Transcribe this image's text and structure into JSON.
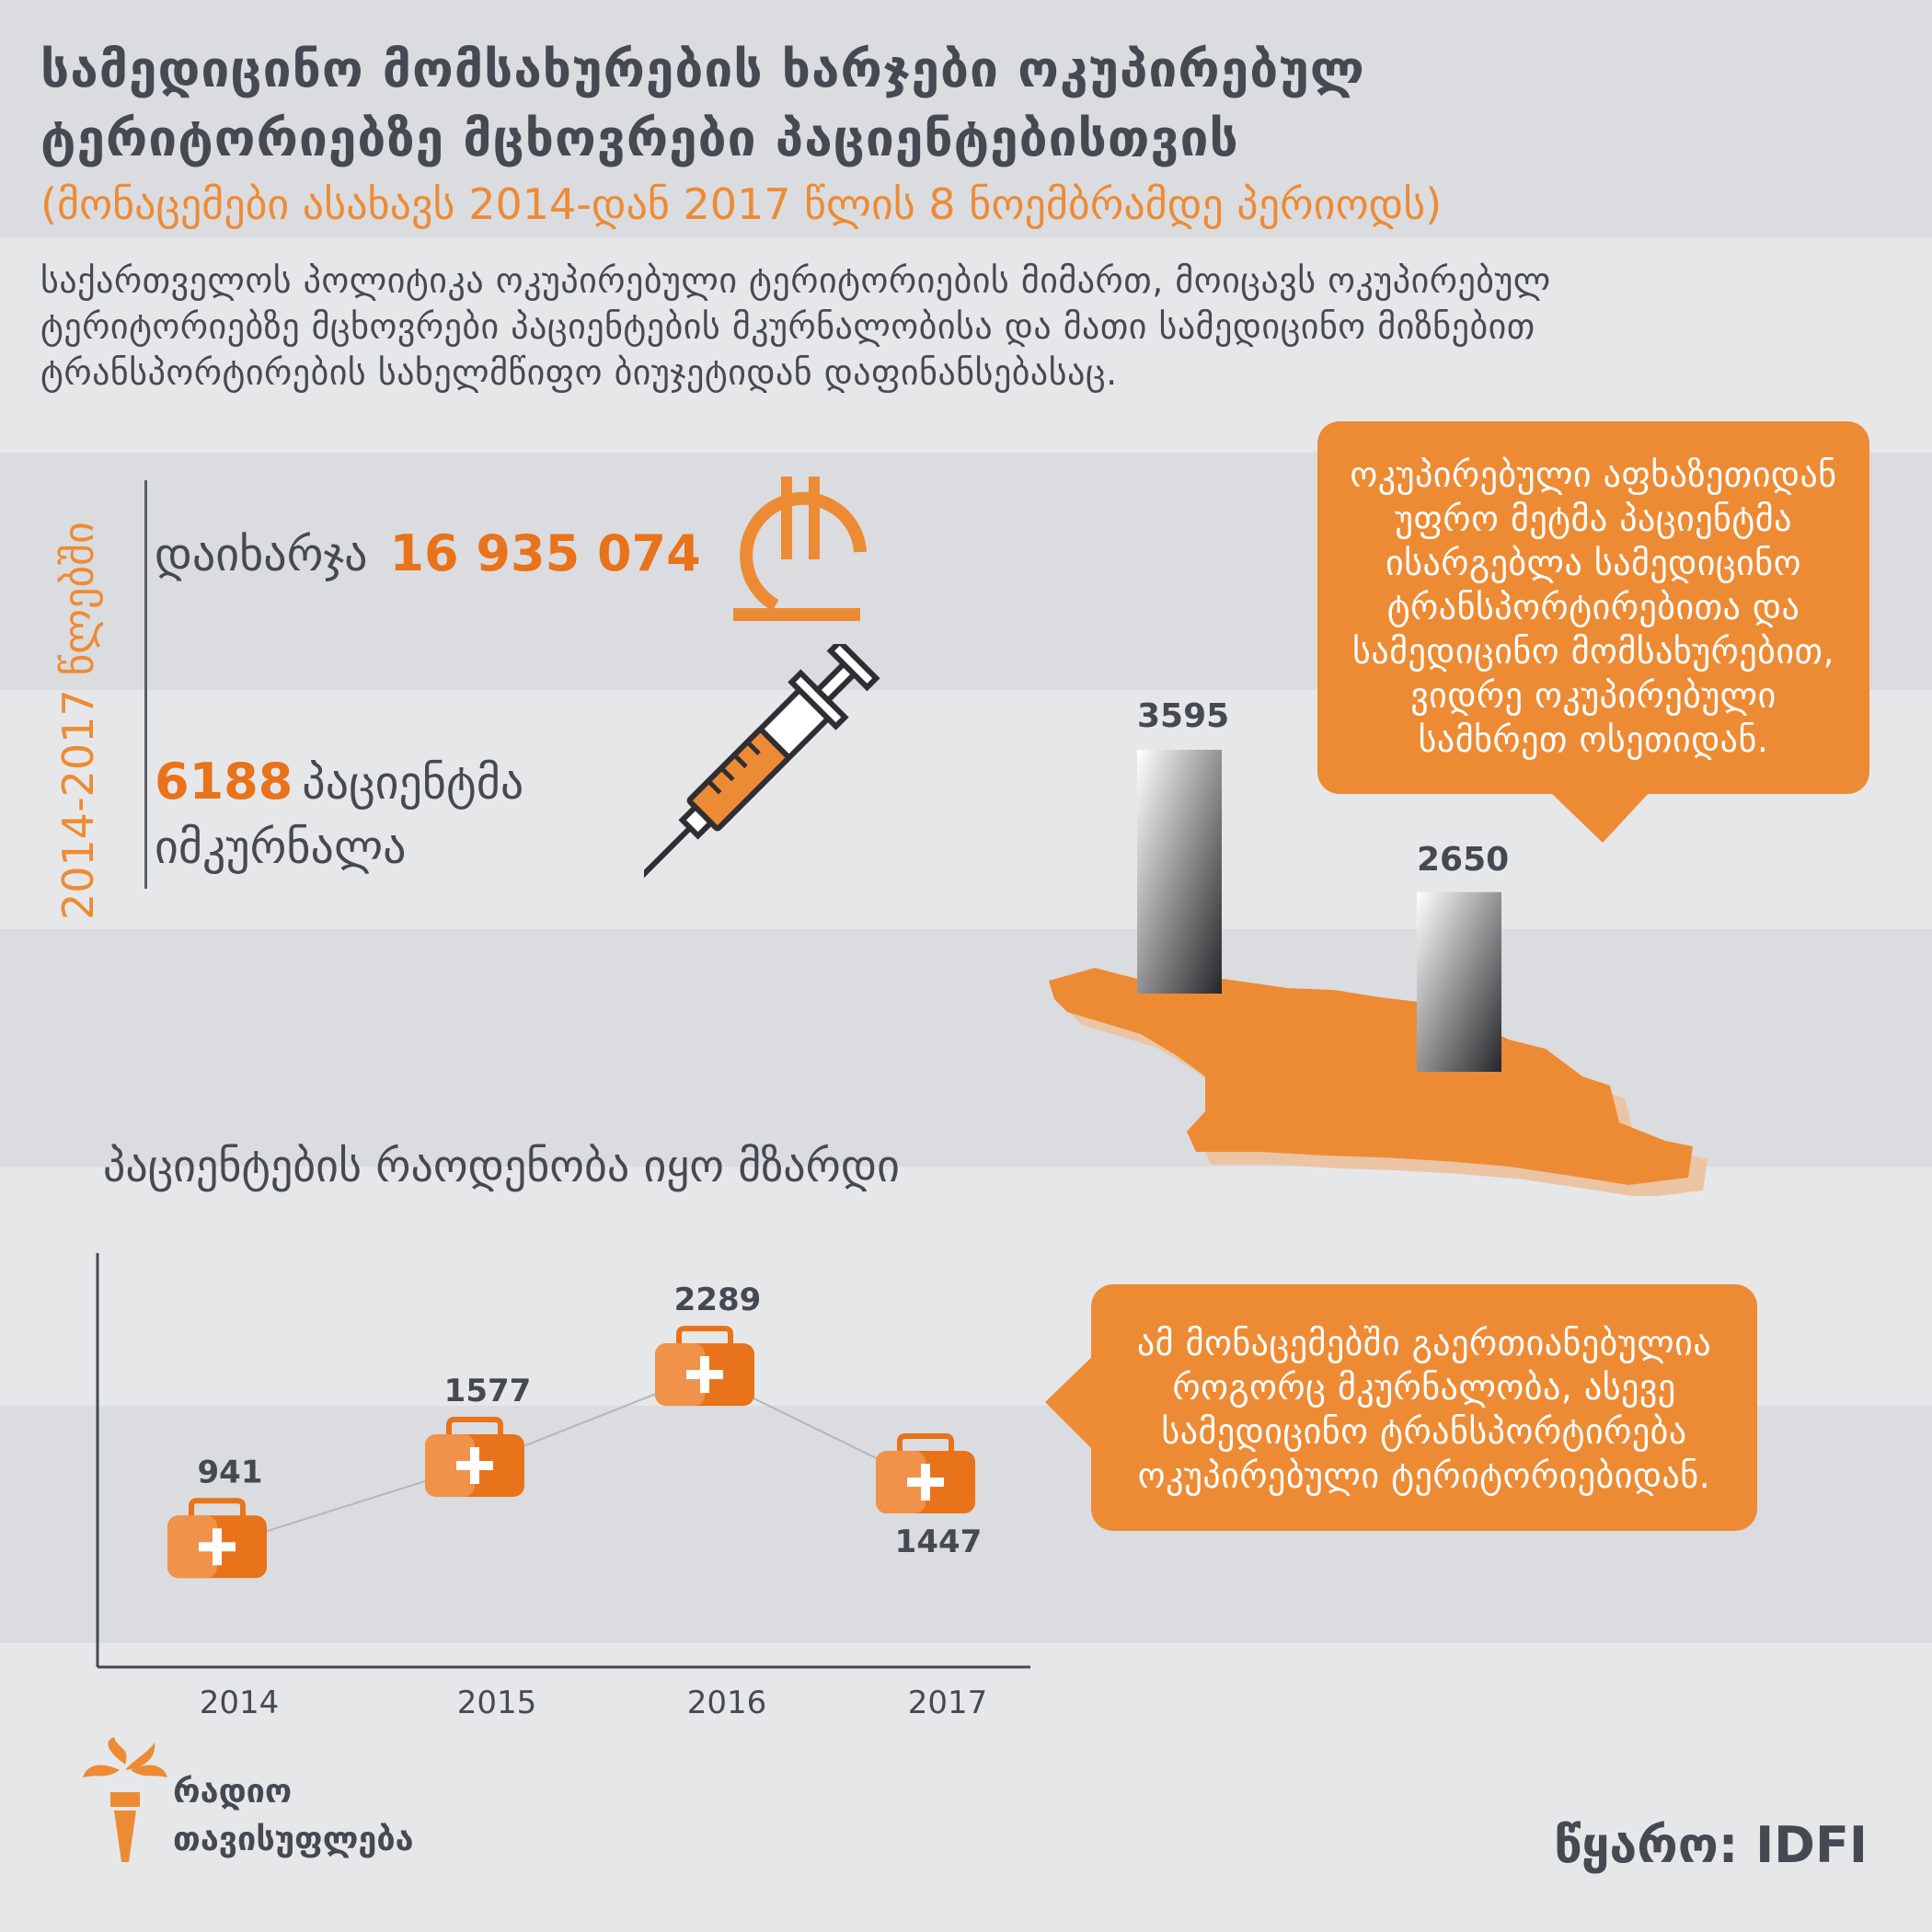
{
  "header": {
    "title_line1": "სამედიცინო მომსახურების ხარჯები ოკუპირებულ",
    "title_line2": "ტერიტორიებზე მცხოვრები პაციენტებისთვის",
    "subtitle": "(მონაცემები ასახავს 2014-დან 2017 წლის 8 ნოემბრამდე პერიოდს)"
  },
  "intro": {
    "line1": "საქართველოს პოლიტიკა ოკუპირებული ტერიტორიების მიმართ, მოიცავს ოკუპირებულ",
    "line2": "ტერიტორიებზე მცხოვრები პაციენტების მკურნალობისა და მათი სამედიცინო მიზნებით",
    "line3": "ტრანსპორტირების სახელმწიფო ბიუჯეტიდან დაფინანსებასაც."
  },
  "summary": {
    "period_label": "2014-2017 წლებში",
    "spent_prefix": "დაიხარჯა",
    "spent_value": "16 935 074",
    "patients_value": "6188",
    "patients_line1": "პაციენტმა",
    "patients_line2": "იმკურნალა"
  },
  "region_callout": {
    "line1": "ოკუპირებული აფხაზეთიდან",
    "line2": "უფრო მეტმა პაციენტმა",
    "line3": "ისარგებლა სამედიცინო",
    "line4": "ტრანსპორტირებითა და",
    "line5": "სამედიცინო მომსახურებით,",
    "line6": "ვიდრე ოკუპირებული",
    "line7": "სამხრეთ ოსეთიდან."
  },
  "data_note": {
    "line1": "ამ მონაცემებში გაერთიანებულია",
    "line2": "როგორც მკურნალობა, ასევე",
    "line3": "სამედიცინო ტრანსპორტირება",
    "line4": "ოკუპირებული ტერიტორიებიდან."
  },
  "colors": {
    "accent": "#ed8b35",
    "accent_dark": "#e8731a",
    "text": "#454a52",
    "band_dark": "#dadcdf",
    "band_light": "#e6e7e9"
  },
  "icons": {
    "currency": "lari-icon",
    "treatment": "syringe-icon",
    "point_marker": "first-aid-kit-icon",
    "brand": "torch-icon"
  },
  "chart_data": [
    {
      "type": "bar",
      "values": [
        3595,
        2650
      ],
      "value_labels": [
        "3595",
        "2650"
      ]
    },
    {
      "type": "line",
      "title": "პაციენტების რაოდენობა იყო მზარდი",
      "categories": [
        "2014",
        "2015",
        "2016",
        "2017"
      ],
      "values": [
        941,
        1577,
        2289,
        1447
      ],
      "value_labels": [
        "941",
        "1577",
        "2289",
        "1447"
      ],
      "ylim": [
        0,
        2700
      ]
    }
  ],
  "footer": {
    "logo_line1": "რადიო",
    "logo_line2": "თავისუფლება",
    "source": "წყარო: IDFI"
  }
}
